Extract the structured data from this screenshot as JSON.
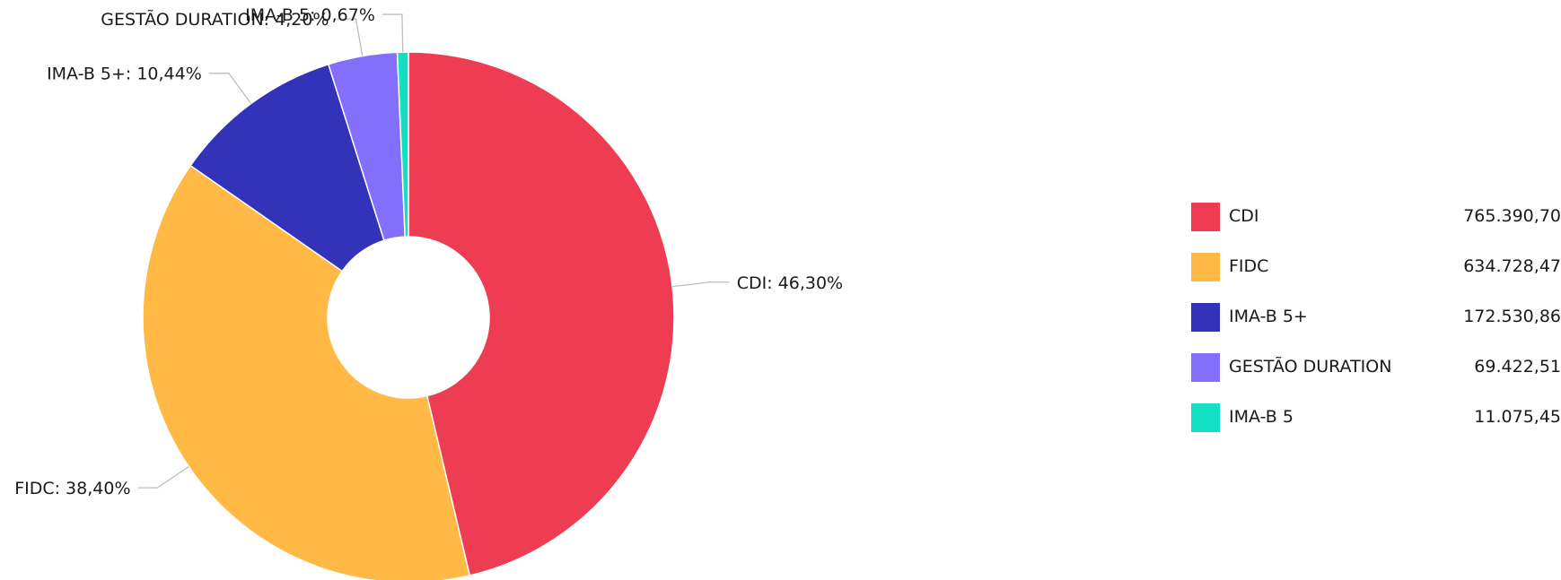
{
  "chart_data": {
    "type": "pie",
    "variant": "donut",
    "title": "",
    "legend_position": "right",
    "slices": [
      {
        "name": "CDI",
        "percent": 46.3,
        "percent_label": "46,30%",
        "value": 765390.7,
        "value_label": "765.390,70",
        "color": "#ee3d52"
      },
      {
        "name": "FIDC",
        "percent": 38.4,
        "percent_label": "38,40%",
        "value": 634728.47,
        "value_label": "634.728,47",
        "color": "#ffb944"
      },
      {
        "name": "IMA-B 5+",
        "percent": 10.44,
        "percent_label": "10,44%",
        "value": 172530.86,
        "value_label": "172.530,86",
        "color": "#3233b8"
      },
      {
        "name": "GESTÃO DURATION",
        "percent": 4.2,
        "percent_label": "4,20%",
        "value": 69422.51,
        "value_label": "69.422,51",
        "color": "#836ffc"
      },
      {
        "name": "IMA-B 5",
        "percent": 0.67,
        "percent_label": "0,67%",
        "value": 11075.45,
        "value_label": "11.075,45",
        "color": "#12dfc4"
      }
    ]
  }
}
